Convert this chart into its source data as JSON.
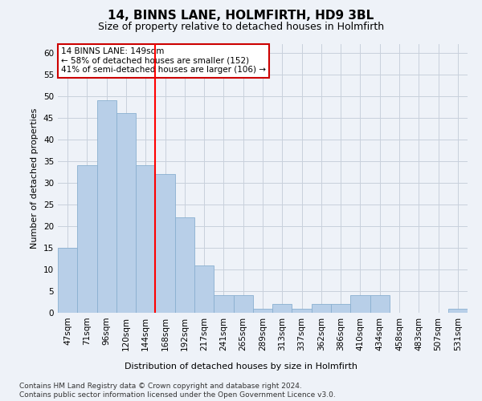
{
  "title": "14, BINNS LANE, HOLMFIRTH, HD9 3BL",
  "subtitle": "Size of property relative to detached houses in Holmfirth",
  "xlabel": "Distribution of detached houses by size in Holmfirth",
  "ylabel": "Number of detached properties",
  "bar_values": [
    15,
    34,
    49,
    46,
    34,
    32,
    22,
    11,
    4,
    4,
    1,
    2,
    1,
    2,
    2,
    4,
    4,
    0,
    0,
    0,
    1
  ],
  "bin_labels": [
    "47sqm",
    "71sqm",
    "96sqm",
    "120sqm",
    "144sqm",
    "168sqm",
    "192sqm",
    "217sqm",
    "241sqm",
    "265sqm",
    "289sqm",
    "313sqm",
    "337sqm",
    "362sqm",
    "386sqm",
    "410sqm",
    "434sqm",
    "458sqm",
    "483sqm",
    "507sqm",
    "531sqm"
  ],
  "bar_color": "#b8cfe8",
  "bar_edge_color": "#8aafd0",
  "bg_color": "#eef2f8",
  "grid_color": "#c8d0dc",
  "red_line_x": 4.5,
  "annotation_box_text": "14 BINNS LANE: 149sqm\n← 58% of detached houses are smaller (152)\n41% of semi-detached houses are larger (106) →",
  "annotation_box_color": "#ffffff",
  "annotation_box_edge_color": "#cc0000",
  "ylim": [
    0,
    62
  ],
  "yticks": [
    0,
    5,
    10,
    15,
    20,
    25,
    30,
    35,
    40,
    45,
    50,
    55,
    60
  ],
  "footnote": "Contains HM Land Registry data © Crown copyright and database right 2024.\nContains public sector information licensed under the Open Government Licence v3.0.",
  "title_fontsize": 11,
  "subtitle_fontsize": 9,
  "label_fontsize": 8,
  "tick_fontsize": 7.5,
  "annot_fontsize": 7.5,
  "footnote_fontsize": 6.5
}
